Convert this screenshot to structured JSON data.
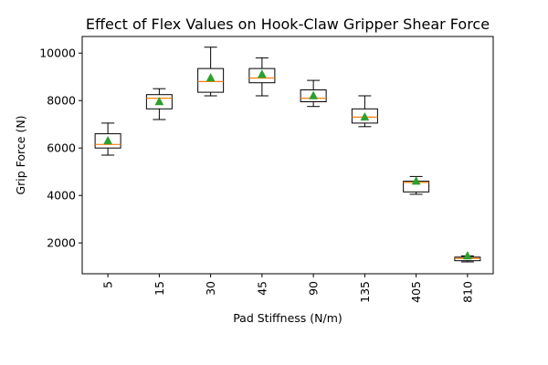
{
  "chart_data": {
    "type": "box",
    "title": "Effect of Flex Values on Hook-Claw Gripper Shear Force",
    "xlabel": "Pad Stiffness (N/m)",
    "ylabel": "Grip Force (N)",
    "ylim": [
      700,
      10700
    ],
    "yticks": [
      2000,
      4000,
      6000,
      8000,
      10000
    ],
    "categories": [
      "5",
      "15",
      "30",
      "45",
      "90",
      "135",
      "405",
      "810"
    ],
    "boxes": [
      {
        "whisker_low": 5700,
        "q1": 6000,
        "median": 6150,
        "q3": 6600,
        "whisker_high": 7050,
        "mean": 6300
      },
      {
        "whisker_low": 7200,
        "q1": 7650,
        "median": 8100,
        "q3": 8250,
        "whisker_high": 8500,
        "mean": 7950
      },
      {
        "whisker_low": 8200,
        "q1": 8350,
        "median": 8800,
        "q3": 9350,
        "whisker_high": 10250,
        "mean": 8950
      },
      {
        "whisker_low": 8200,
        "q1": 8750,
        "median": 8950,
        "q3": 9350,
        "whisker_high": 9800,
        "mean": 9100
      },
      {
        "whisker_low": 7750,
        "q1": 7950,
        "median": 8100,
        "q3": 8450,
        "whisker_high": 8850,
        "mean": 8200
      },
      {
        "whisker_low": 6900,
        "q1": 7050,
        "median": 7300,
        "q3": 7650,
        "whisker_high": 8200,
        "mean": 7300
      },
      {
        "whisker_low": 4050,
        "q1": 4150,
        "median": 4550,
        "q3": 4600,
        "whisker_high": 4800,
        "mean": 4600
      },
      {
        "whisker_low": 1200,
        "q1": 1250,
        "median": 1350,
        "q3": 1400,
        "whisker_high": 1450,
        "mean": 1450
      }
    ],
    "colors": {
      "box": "#000000",
      "median": "#ff7f0e",
      "mean": "#2ca02c"
    },
    "grid": false,
    "x_tick_rotation": "vertical"
  }
}
